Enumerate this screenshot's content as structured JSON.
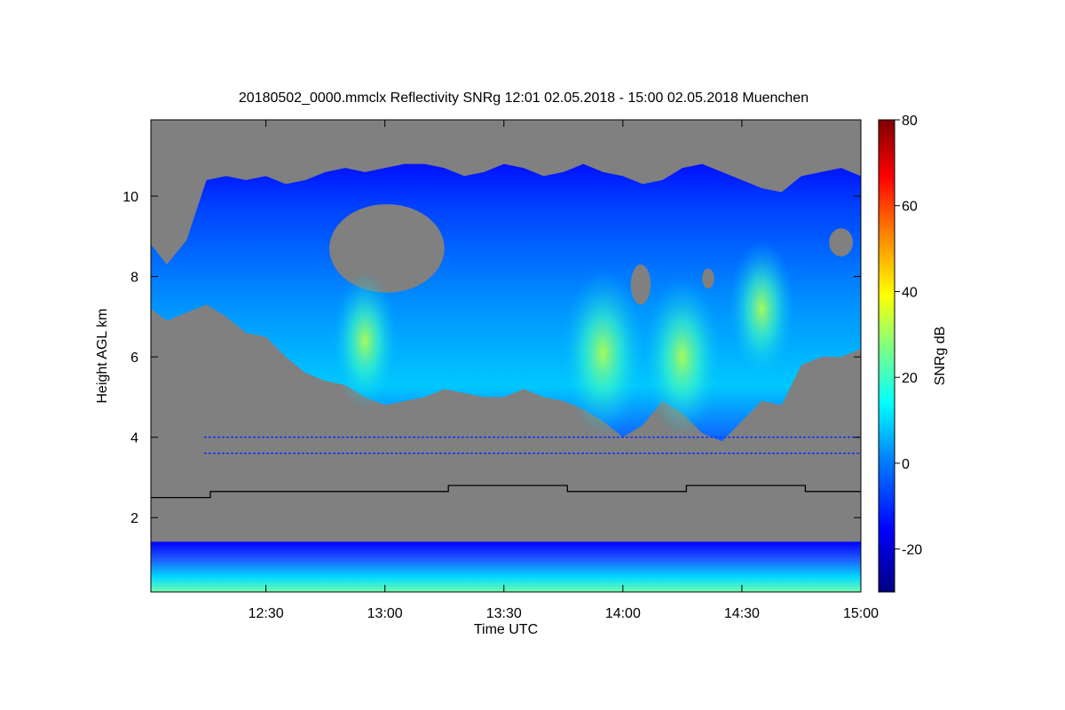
{
  "chart_data": {
    "type": "heatmap",
    "title": "20180502_0000.mmclx Reflectivity SNRg   12:01 02.05.2018 - 15:00 02.05.2018 Muenchen",
    "xlabel": "Time UTC",
    "ylabel": "Height AGL km",
    "colorbar_label": "SNRg dB",
    "x_range": [
      "12:01",
      "15:00"
    ],
    "y_range_km": [
      0.15,
      11.9
    ],
    "color_range_db": [
      -30,
      80
    ],
    "x_ticks": [
      "12:30",
      "13:00",
      "13:30",
      "14:00",
      "14:30",
      "15:00"
    ],
    "y_ticks": [
      "2",
      "4",
      "6",
      "8",
      "10"
    ],
    "colorbar_ticks": [
      "-20",
      "0",
      "20",
      "40",
      "60",
      "80"
    ],
    "background_color": "#808080",
    "colormap": [
      "#00007f",
      "#0000ff",
      "#0080ff",
      "#00ffff",
      "#80ff80",
      "#ffff00",
      "#ff8000",
      "#ff0000",
      "#7f0000"
    ],
    "cloud_base_km": [
      {
        "t": "12:01",
        "v": 7.2
      },
      {
        "t": "12:05",
        "v": 6.9
      },
      {
        "t": "12:10",
        "v": 7.1
      },
      {
        "t": "12:15",
        "v": 7.3
      },
      {
        "t": "12:20",
        "v": 7.0
      },
      {
        "t": "12:25",
        "v": 6.6
      },
      {
        "t": "12:30",
        "v": 6.5
      },
      {
        "t": "12:35",
        "v": 6.0
      },
      {
        "t": "12:40",
        "v": 5.6
      },
      {
        "t": "12:45",
        "v": 5.4
      },
      {
        "t": "12:50",
        "v": 5.3
      },
      {
        "t": "12:55",
        "v": 5.0
      },
      {
        "t": "13:00",
        "v": 4.8
      },
      {
        "t": "13:05",
        "v": 4.9
      },
      {
        "t": "13:10",
        "v": 5.0
      },
      {
        "t": "13:15",
        "v": 5.2
      },
      {
        "t": "13:20",
        "v": 5.1
      },
      {
        "t": "13:25",
        "v": 5.0
      },
      {
        "t": "13:30",
        "v": 5.0
      },
      {
        "t": "13:35",
        "v": 5.2
      },
      {
        "t": "13:40",
        "v": 5.0
      },
      {
        "t": "13:45",
        "v": 4.9
      },
      {
        "t": "13:50",
        "v": 4.7
      },
      {
        "t": "13:55",
        "v": 4.4
      },
      {
        "t": "14:00",
        "v": 4.0
      },
      {
        "t": "14:05",
        "v": 4.3
      },
      {
        "t": "14:10",
        "v": 4.9
      },
      {
        "t": "14:15",
        "v": 4.6
      },
      {
        "t": "14:20",
        "v": 4.1
      },
      {
        "t": "14:25",
        "v": 3.9
      },
      {
        "t": "14:30",
        "v": 4.4
      },
      {
        "t": "14:35",
        "v": 4.9
      },
      {
        "t": "14:40",
        "v": 4.8
      },
      {
        "t": "14:45",
        "v": 5.8
      },
      {
        "t": "14:50",
        "v": 6.0
      },
      {
        "t": "14:55",
        "v": 6.0
      },
      {
        "t": "15:00",
        "v": 6.2
      }
    ],
    "cloud_top_km": [
      {
        "t": "12:01",
        "v": 8.8
      },
      {
        "t": "12:05",
        "v": 8.3
      },
      {
        "t": "12:10",
        "v": 8.9
      },
      {
        "t": "12:15",
        "v": 10.4
      },
      {
        "t": "12:20",
        "v": 10.5
      },
      {
        "t": "12:25",
        "v": 10.4
      },
      {
        "t": "12:30",
        "v": 10.5
      },
      {
        "t": "12:35",
        "v": 10.3
      },
      {
        "t": "12:40",
        "v": 10.4
      },
      {
        "t": "12:45",
        "v": 10.6
      },
      {
        "t": "12:50",
        "v": 10.7
      },
      {
        "t": "12:55",
        "v": 10.6
      },
      {
        "t": "13:00",
        "v": 10.7
      },
      {
        "t": "13:05",
        "v": 10.8
      },
      {
        "t": "13:10",
        "v": 10.8
      },
      {
        "t": "13:15",
        "v": 10.7
      },
      {
        "t": "13:20",
        "v": 10.5
      },
      {
        "t": "13:25",
        "v": 10.6
      },
      {
        "t": "13:30",
        "v": 10.8
      },
      {
        "t": "13:35",
        "v": 10.7
      },
      {
        "t": "13:40",
        "v": 10.5
      },
      {
        "t": "13:45",
        "v": 10.6
      },
      {
        "t": "13:50",
        "v": 10.8
      },
      {
        "t": "13:55",
        "v": 10.6
      },
      {
        "t": "14:00",
        "v": 10.5
      },
      {
        "t": "14:05",
        "v": 10.3
      },
      {
        "t": "14:10",
        "v": 10.4
      },
      {
        "t": "14:15",
        "v": 10.7
      },
      {
        "t": "14:20",
        "v": 10.8
      },
      {
        "t": "14:25",
        "v": 10.6
      },
      {
        "t": "14:30",
        "v": 10.4
      },
      {
        "t": "14:35",
        "v": 10.2
      },
      {
        "t": "14:40",
        "v": 10.1
      },
      {
        "t": "14:45",
        "v": 10.5
      },
      {
        "t": "14:50",
        "v": 10.6
      },
      {
        "t": "14:55",
        "v": 10.7
      },
      {
        "t": "15:00",
        "v": 10.5
      }
    ],
    "clear_gaps_km": [
      {
        "t_start": "12:46",
        "t_end": "13:15",
        "y_low": 7.6,
        "y_high": 9.8
      },
      {
        "t_start": "14:02",
        "t_end": "14:07",
        "y_low": 7.3,
        "y_high": 8.3
      },
      {
        "t_start": "14:20",
        "t_end": "14:23",
        "y_low": 7.7,
        "y_high": 8.2
      },
      {
        "t_start": "14:52",
        "t_end": "14:58",
        "y_low": 8.5,
        "y_high": 9.2
      }
    ],
    "bright_cores": [
      {
        "t": "12:55",
        "y": 6.4,
        "db": 14
      },
      {
        "t": "13:55",
        "y": 6.1,
        "db": 22
      },
      {
        "t": "14:15",
        "y": 6.0,
        "db": 20
      },
      {
        "t": "14:35",
        "y": 7.2,
        "db": 14
      }
    ],
    "boundary_layer_km": [
      0.15,
      1.4
    ],
    "melting_layer_line_km": [
      {
        "t_start": "12:01",
        "t_end": "12:16",
        "v": 2.5
      },
      {
        "t_start": "12:16",
        "t_end": "13:16",
        "v": 2.65
      },
      {
        "t_start": "13:16",
        "t_end": "13:46",
        "v": 2.8
      },
      {
        "t_start": "13:46",
        "t_end": "14:16",
        "v": 2.65
      },
      {
        "t_start": "14:16",
        "t_end": "14:46",
        "v": 2.8
      },
      {
        "t_start": "14:46",
        "t_end": "15:00",
        "v": 2.65
      }
    ],
    "artifact_lines_km": [
      4.0,
      3.6
    ]
  }
}
